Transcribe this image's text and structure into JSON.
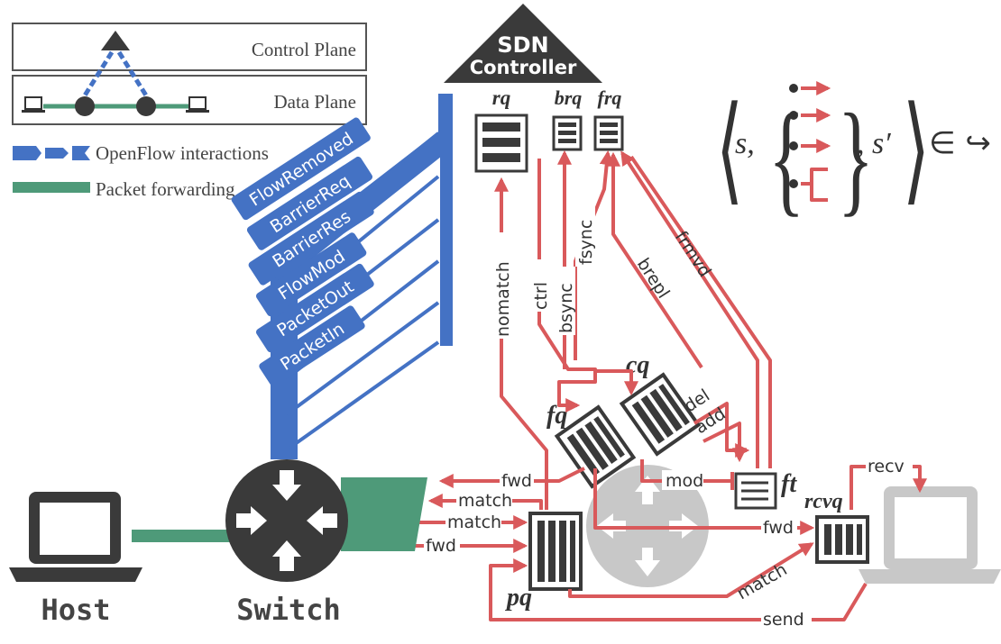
{
  "legend": {
    "control_plane": "Control Plane",
    "data_plane": "Data Plane",
    "openflow": "OpenFlow interactions",
    "packet_forwarding": "Packet forwarding"
  },
  "controller": {
    "line1": "SDN",
    "line2": "Controller"
  },
  "queues": {
    "rq": "rq",
    "brq": "brq",
    "frq": "frq",
    "cq": "cq",
    "fq": "fq",
    "ft": "ft",
    "rcvq": "rcvq",
    "pq": "pq"
  },
  "messages": [
    "FlowRemoved",
    "BarrierReq",
    "BarrierRes",
    "FlowMod",
    "PacketOut",
    "PacketIn"
  ],
  "arrows": {
    "nomatch": "nomatch",
    "ctrl": "ctrl",
    "bsync": "bsync",
    "fsync": "fsync",
    "brepl": "brepl",
    "frmvd": "frmvd",
    "del": "del",
    "add": "add",
    "mod": "mod",
    "fwd_top": "fwd",
    "match_1": "match",
    "match_2": "match",
    "fwd_left": "fwd",
    "fwd_right": "fwd",
    "match_right": "match",
    "send": "send",
    "recv": "recv"
  },
  "formula": {
    "s": "s,",
    "s_prime": ", s′",
    "relation": "∈ ↪"
  },
  "labels": {
    "host": "Host",
    "switch": "Switch"
  },
  "colors": {
    "openflow_blue": "#4472c4",
    "forwarding_green": "#4e9a79",
    "arrow_red": "#d9595b",
    "dark_grey": "#3a3a3a",
    "light_grey": "#c8c8c8"
  }
}
